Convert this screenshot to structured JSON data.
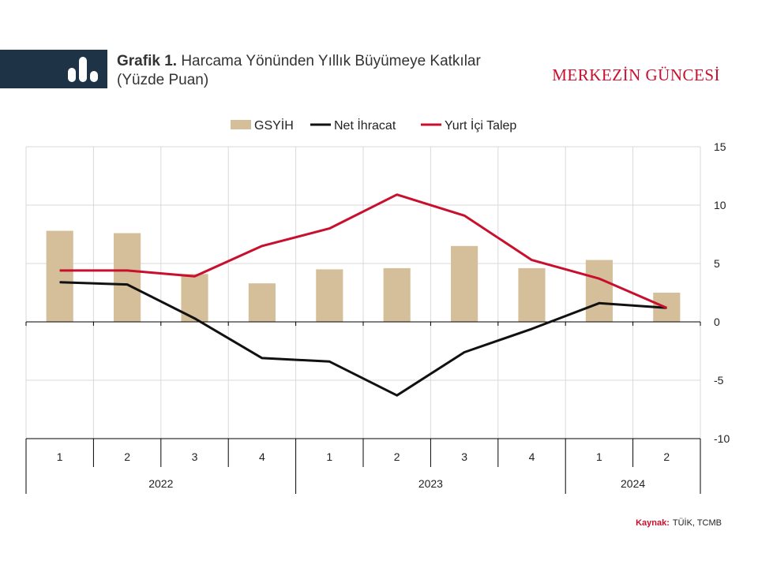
{
  "header": {
    "title_bold": "Grafik 1.",
    "title_line1": "Harcama Yönünden Yıllık Büyümeye Katkılar",
    "title_line2": "(Yüzde Puan)",
    "brand": "MERKEZİN GÜNCESİ"
  },
  "source": {
    "label": "Kaynak:",
    "text": "TÜİK, TCMB"
  },
  "colors": {
    "band": "#1f3347",
    "bar": "#d5bf9a",
    "net_export": "#111111",
    "domestic": "#c8102e",
    "grid": "#d9d9d9"
  },
  "chart_data": {
    "type": "bar",
    "categories": [
      "1",
      "2",
      "3",
      "4",
      "1",
      "2",
      "3",
      "4",
      "1",
      "2"
    ],
    "groups": [
      {
        "label": "2022",
        "count": 4
      },
      {
        "label": "2023",
        "count": 4
      },
      {
        "label": "2024",
        "count": 2
      }
    ],
    "series": [
      {
        "name": "GSYİH",
        "kind": "bar",
        "values": [
          7.8,
          7.6,
          4.1,
          3.3,
          4.5,
          4.6,
          6.5,
          4.6,
          5.3,
          2.5
        ]
      },
      {
        "name": "Net İhracat",
        "kind": "line",
        "values": [
          3.4,
          3.2,
          0.3,
          -3.1,
          -3.4,
          -6.3,
          -2.6,
          -0.6,
          1.6,
          1.2
        ]
      },
      {
        "name": "Yurt İçi Talep",
        "kind": "line",
        "values": [
          4.4,
          4.4,
          3.9,
          6.5,
          8.0,
          10.9,
          9.1,
          5.3,
          3.7,
          1.2
        ]
      }
    ],
    "ylim": [
      -10,
      15
    ],
    "yticks": [
      15,
      10,
      5,
      0,
      -5,
      -10
    ],
    "xlabel": "",
    "ylabel": "",
    "grid": true,
    "legend_position": "top-center"
  }
}
